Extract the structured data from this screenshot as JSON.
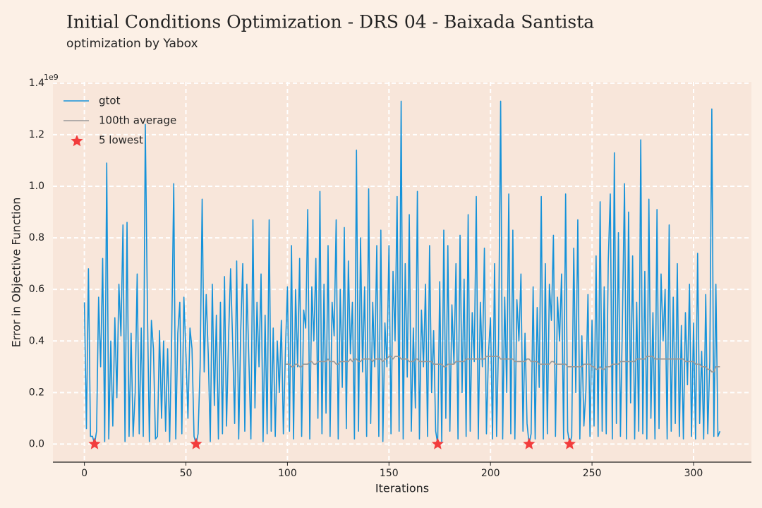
{
  "chart_data": {
    "type": "line",
    "title": "Initial Conditions Optimization - DRS 04 - Baixada Santista",
    "subtitle": "optimization by Yabox",
    "xlabel": "Iterations",
    "ylabel": "Error in Objective Function",
    "y_offset_label": "1e9",
    "xlim": [
      -15.5,
      328.5
    ],
    "ylim": [
      -0.07,
      1.405
    ],
    "xticks": [
      0,
      50,
      100,
      150,
      200,
      250,
      300
    ],
    "yticks": [
      {
        "value": 0,
        "label": "0.0"
      },
      0.2,
      0.4,
      0.6,
      0.8,
      {
        "value": 1,
        "label": "1.0"
      },
      1.2,
      1.4
    ],
    "grid": true,
    "legend": "upper left",
    "series": [
      {
        "name": "gtot",
        "type": "line",
        "color": "#1592d9",
        "values": [
          0.55,
          0.06,
          0.68,
          0.03,
          0.03,
          0.0,
          0.05,
          0.57,
          0.3,
          0.72,
          0.01,
          1.09,
          0.02,
          0.4,
          0.07,
          0.49,
          0.18,
          0.62,
          0.42,
          0.85,
          0.01,
          0.86,
          0.03,
          0.43,
          0.03,
          0.2,
          0.66,
          0.04,
          0.45,
          0.03,
          1.24,
          0.55,
          0.01,
          0.48,
          0.37,
          0.02,
          0.03,
          0.44,
          0.1,
          0.4,
          0.05,
          0.37,
          0.01,
          0.42,
          1.01,
          0.02,
          0.43,
          0.55,
          0.04,
          0.57,
          0.35,
          0.1,
          0.45,
          0.37,
          0.03,
          0.0,
          0.04,
          0.3,
          0.95,
          0.28,
          0.58,
          0.35,
          0.01,
          0.62,
          0.15,
          0.5,
          0.02,
          0.55,
          0.04,
          0.65,
          0.07,
          0.41,
          0.68,
          0.4,
          0.08,
          0.71,
          0.02,
          0.44,
          0.7,
          0.05,
          0.62,
          0.33,
          0.02,
          0.87,
          0.14,
          0.55,
          0.3,
          0.66,
          0.01,
          0.5,
          0.04,
          0.87,
          0.05,
          0.45,
          0.03,
          0.4,
          0.2,
          0.48,
          0.04,
          0.36,
          0.61,
          0.05,
          0.77,
          0.02,
          0.6,
          0.3,
          0.72,
          0.03,
          0.52,
          0.45,
          0.91,
          0.02,
          0.61,
          0.4,
          0.72,
          0.1,
          0.98,
          0.04,
          0.62,
          0.12,
          0.77,
          0.03,
          0.55,
          0.42,
          0.87,
          0.02,
          0.6,
          0.22,
          0.84,
          0.06,
          0.71,
          0.35,
          0.55,
          0.02,
          1.14,
          0.05,
          0.8,
          0.28,
          0.61,
          0.03,
          0.99,
          0.08,
          0.55,
          0.3,
          0.77,
          0.03,
          0.83,
          0.01,
          0.47,
          0.3,
          0.77,
          0.04,
          0.67,
          0.4,
          0.96,
          0.05,
          1.33,
          0.02,
          0.7,
          0.26,
          0.89,
          0.05,
          0.45,
          0.14,
          0.98,
          0.02,
          0.52,
          0.3,
          0.62,
          0.03,
          0.77,
          0.2,
          0.44,
          0.05,
          0.0,
          0.63,
          0.01,
          0.83,
          0.1,
          0.77,
          0.05,
          0.54,
          0.31,
          0.7,
          0.02,
          0.81,
          0.2,
          0.64,
          0.03,
          0.89,
          0.05,
          0.51,
          0.32,
          0.96,
          0.02,
          0.55,
          0.3,
          0.76,
          0.04,
          0.35,
          0.49,
          0.02,
          0.7,
          0.03,
          0.41,
          1.33,
          0.02,
          0.57,
          0.2,
          0.97,
          0.04,
          0.83,
          0.02,
          0.56,
          0.4,
          0.66,
          0.05,
          0.43,
          0.08,
          0.0,
          0.04,
          0.61,
          0.02,
          0.53,
          0.22,
          0.96,
          0.02,
          0.7,
          0.04,
          0.62,
          0.48,
          0.81,
          0.03,
          0.57,
          0.4,
          0.66,
          0.02,
          0.97,
          0.05,
          0.0,
          0.03,
          0.76,
          0.2,
          0.87,
          0.02,
          0.42,
          0.07,
          0.21,
          0.58,
          0.03,
          0.48,
          0.07,
          0.73,
          0.03,
          0.94,
          0.05,
          0.61,
          0.04,
          0.71,
          0.97,
          0.02,
          1.13,
          0.08,
          0.82,
          0.03,
          0.49,
          1.01,
          0.02,
          0.9,
          0.16,
          0.73,
          0.02,
          0.55,
          0.05,
          1.18,
          0.04,
          0.67,
          0.02,
          0.95,
          0.1,
          0.51,
          0.02,
          0.91,
          0.06,
          0.66,
          0.4,
          0.6,
          0.02,
          0.85,
          0.05,
          0.57,
          0.08,
          0.7,
          0.03,
          0.46,
          0.02,
          0.51,
          0.23,
          0.62,
          0.03,
          0.47,
          0.02,
          0.74,
          0.08,
          0.36,
          0.02,
          0.58,
          0.04,
          0.32,
          1.3,
          0.03,
          0.62,
          0.03,
          0.05
        ]
      },
      {
        "name": "100th average",
        "type": "line",
        "color": "#999999",
        "values": [
          null,
          null,
          null,
          null,
          null,
          null,
          null,
          null,
          null,
          null,
          null,
          null,
          null,
          null,
          null,
          null,
          null,
          null,
          null,
          null,
          null,
          null,
          null,
          null,
          null,
          null,
          null,
          null,
          null,
          null,
          null,
          null,
          null,
          null,
          null,
          null,
          null,
          null,
          null,
          null,
          null,
          null,
          null,
          null,
          null,
          null,
          null,
          null,
          null,
          null,
          null,
          null,
          null,
          null,
          null,
          null,
          null,
          null,
          null,
          null,
          null,
          null,
          null,
          null,
          null,
          null,
          null,
          null,
          null,
          null,
          null,
          null,
          null,
          null,
          null,
          null,
          null,
          null,
          null,
          null,
          null,
          null,
          null,
          null,
          null,
          null,
          null,
          null,
          null,
          null,
          null,
          null,
          null,
          null,
          null,
          null,
          null,
          null,
          null,
          0.31,
          0.31,
          0.31,
          0.3,
          0.3,
          0.31,
          0.31,
          0.3,
          0.3,
          0.31,
          0.31,
          0.31,
          0.32,
          0.32,
          0.31,
          0.31,
          0.32,
          0.32,
          0.32,
          0.32,
          0.32,
          0.33,
          0.32,
          0.32,
          0.32,
          0.31,
          0.31,
          0.32,
          0.32,
          0.32,
          0.32,
          0.32,
          0.33,
          0.32,
          0.33,
          0.33,
          0.32,
          0.32,
          0.33,
          0.33,
          0.33,
          0.33,
          0.33,
          0.32,
          0.33,
          0.33,
          0.33,
          0.33,
          0.32,
          0.33,
          0.33,
          0.34,
          0.34,
          0.33,
          0.34,
          0.34,
          0.34,
          0.33,
          0.33,
          0.33,
          0.33,
          0.32,
          0.32,
          0.32,
          0.33,
          0.33,
          0.32,
          0.32,
          0.32,
          0.32,
          0.32,
          0.32,
          0.32,
          0.31,
          0.31,
          0.31,
          0.31,
          0.31,
          0.3,
          0.3,
          0.31,
          0.31,
          0.31,
          0.31,
          0.32,
          0.32,
          0.32,
          0.32,
          0.32,
          0.33,
          0.33,
          0.33,
          0.33,
          0.33,
          0.33,
          0.33,
          0.33,
          0.33,
          0.33,
          0.34,
          0.34,
          0.34,
          0.34,
          0.34,
          0.34,
          0.34,
          0.33,
          0.33,
          0.33,
          0.33,
          0.33,
          0.33,
          0.33,
          0.32,
          0.32,
          0.32,
          0.32,
          0.32,
          0.32,
          0.33,
          0.33,
          0.32,
          0.32,
          0.32,
          0.32,
          0.31,
          0.31,
          0.31,
          0.31,
          0.31,
          0.31,
          0.32,
          0.32,
          0.31,
          0.31,
          0.31,
          0.31,
          0.31,
          0.31,
          0.3,
          0.3,
          0.3,
          0.3,
          0.3,
          0.3,
          0.3,
          0.3,
          0.31,
          0.31,
          0.31,
          0.31,
          0.3,
          0.3,
          0.29,
          0.29,
          0.3,
          0.29,
          0.29,
          0.3,
          0.3,
          0.3,
          0.31,
          0.31,
          0.31,
          0.31,
          0.32,
          0.32,
          0.32,
          0.32,
          0.32,
          0.32,
          0.32,
          0.32,
          0.33,
          0.33,
          0.33,
          0.33,
          0.33,
          0.34,
          0.34,
          0.34,
          0.34,
          0.33,
          0.33,
          0.33,
          0.33,
          0.33,
          0.33,
          0.33,
          0.33,
          0.33,
          0.33,
          0.33,
          0.33,
          0.33,
          0.33,
          0.33,
          0.32,
          0.32,
          0.32,
          0.32,
          0.32,
          0.31,
          0.31,
          0.31,
          0.3,
          0.3,
          0.3,
          0.29,
          0.29,
          0.28,
          0.28,
          0.3,
          0.3,
          0.3
        ]
      },
      {
        "name": "5 lowest",
        "type": "scatter",
        "color": "#f23c3c",
        "x": [
          5,
          55,
          174,
          219,
          239
        ],
        "values": [
          0.0,
          0.0,
          0.0,
          0.0,
          0.0
        ]
      }
    ]
  }
}
